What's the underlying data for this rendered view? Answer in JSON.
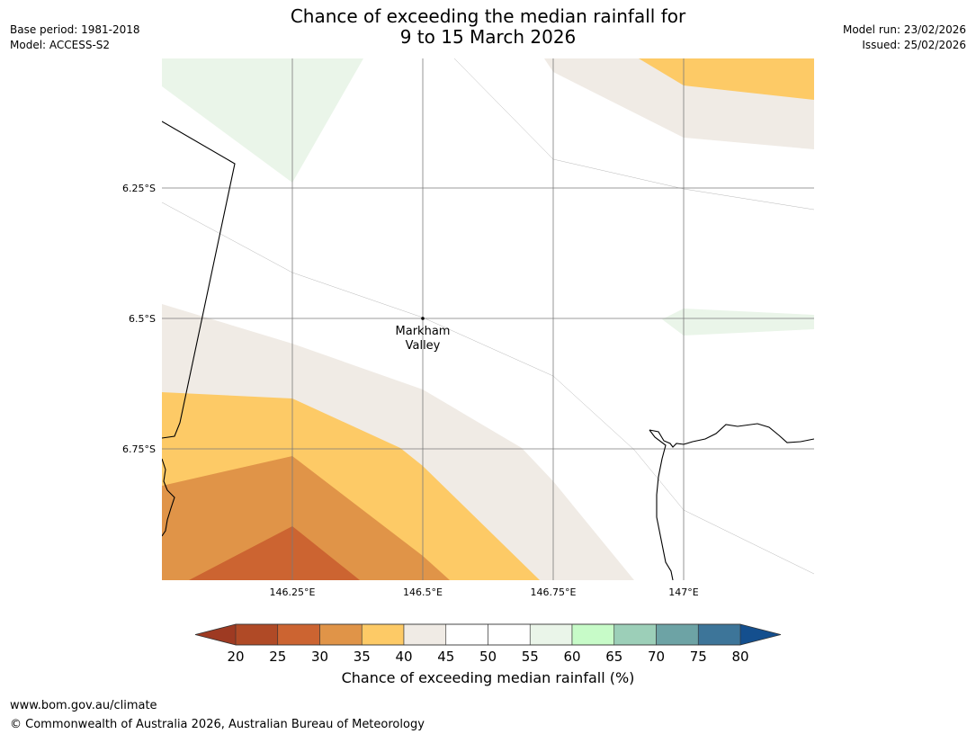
{
  "header": {
    "title_line1": "Chance of exceeding the median rainfall for",
    "title_line2": "9 to 15 March 2026",
    "base_period": "Base period: 1981-2018",
    "model": "Model: ACCESS-S2",
    "model_run": "Model run: 23/02/2026",
    "issued": "Issued: 25/02/2026"
  },
  "map": {
    "lat_labels": [
      "6.25°S",
      "6.5°S",
      "6.75°S"
    ],
    "lon_labels": [
      "146.25°E",
      "146.5°E",
      "146.75°E",
      "147°E"
    ],
    "place": {
      "name_line1": "Markham",
      "name_line2": "Valley"
    },
    "icons": [
      "place-marker-icon"
    ]
  },
  "colorbar": {
    "label": "Chance of exceeding median rainfall (%)",
    "ticks": [
      "20",
      "25",
      "30",
      "35",
      "40",
      "45",
      "50",
      "55",
      "60",
      "65",
      "70",
      "75",
      "80"
    ],
    "bin_colors": [
      "#b04a26",
      "#cc6431",
      "#e09448",
      "#fdca66",
      "#f0ebe5",
      "#ffffff",
      "#ffffff",
      "#eaf5e9",
      "#c7fbc8",
      "#9ccfb8",
      "#6da3a5",
      "#3d7599"
    ],
    "under_color": "#9e3a22",
    "over_color": "#144f8e"
  },
  "palette": {
    "c25_30": "#cc6431",
    "c30_35": "#e09448",
    "c35_40": "#fdca66",
    "c40_45": "#f0ebe5",
    "c55_60": "#eaf5e9",
    "grid": "#7a7a7a",
    "coast": "#000000"
  },
  "footer": {
    "url": "www.bom.gov.au/climate",
    "copyright": "© Commonwealth of Australia 2026, Australian Bureau of Meteorology"
  }
}
